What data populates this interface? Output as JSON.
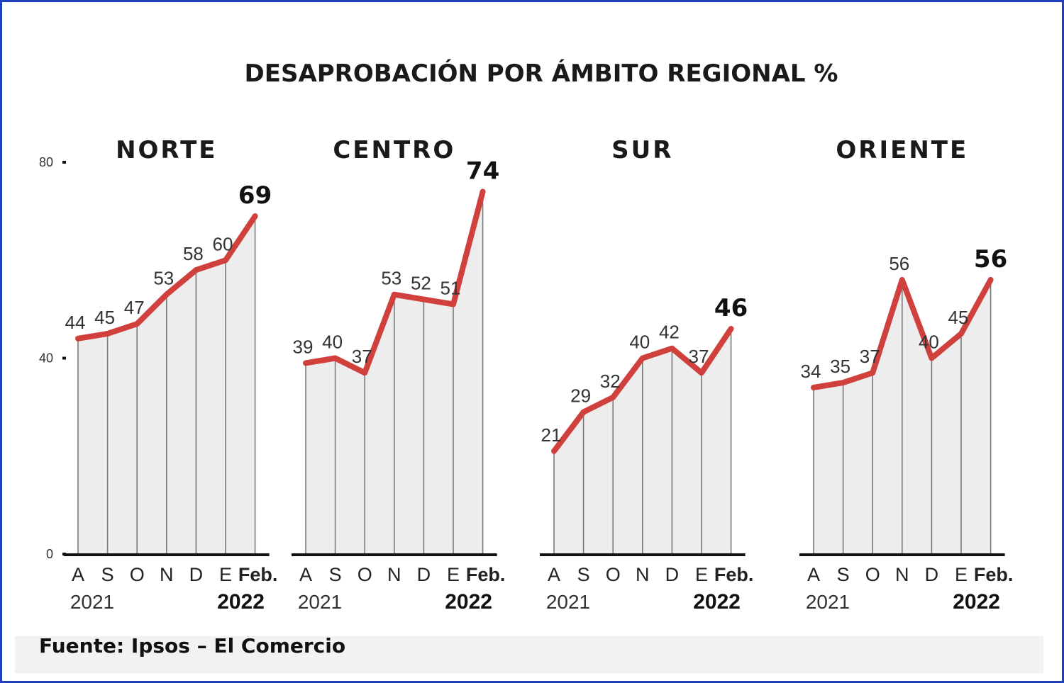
{
  "title": "DESAPROBACIÓN POR ÁMBITO REGIONAL %",
  "source": "Fuente: Ipsos – El Comercio",
  "colors": {
    "line": "#d0413e",
    "area": "#ededed",
    "frame": "#1f3fbf",
    "axis": "#111111"
  },
  "chart_data": [
    {
      "type": "area",
      "title": "NORTE",
      "categories": [
        "A",
        "S",
        "O",
        "N",
        "D",
        "E",
        "Feb."
      ],
      "years": [
        "2021",
        "2022"
      ],
      "values": [
        44,
        45,
        47,
        53,
        58,
        60,
        69
      ],
      "ylim": [
        0,
        80
      ],
      "yticks": [
        "80",
        "40",
        "0"
      ],
      "grid": false
    },
    {
      "type": "area",
      "title": "CENTRO",
      "categories": [
        "A",
        "S",
        "O",
        "N",
        "D",
        "E",
        "Feb."
      ],
      "years": [
        "2021",
        "2022"
      ],
      "values": [
        39,
        40,
        37,
        53,
        52,
        51,
        74
      ],
      "ylim": [
        0,
        80
      ],
      "grid": false
    },
    {
      "type": "area",
      "title": "SUR",
      "categories": [
        "A",
        "S",
        "O",
        "N",
        "D",
        "E",
        "Feb."
      ],
      "years": [
        "2021",
        "2022"
      ],
      "values": [
        21,
        29,
        32,
        40,
        42,
        37,
        46
      ],
      "ylim": [
        0,
        80
      ],
      "grid": false
    },
    {
      "type": "area",
      "title": "ORIENTE",
      "categories": [
        "A",
        "S",
        "O",
        "N",
        "D",
        "E",
        "Feb."
      ],
      "years": [
        "2021",
        "2022"
      ],
      "values": [
        34,
        35,
        37,
        56,
        40,
        45,
        56
      ],
      "ylim": [
        0,
        80
      ],
      "grid": false
    }
  ]
}
